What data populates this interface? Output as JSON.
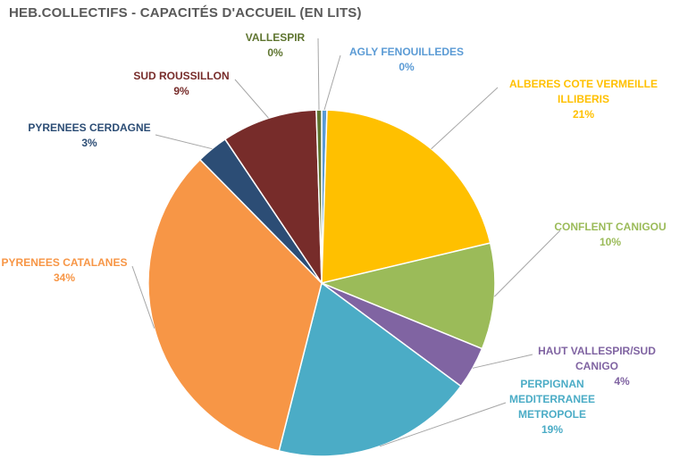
{
  "chart_data": {
    "type": "pie",
    "title": "HEB.COLLECTIFS  - CAPACITÉS D'ACCUEIL (EN LITS)",
    "slices": [
      {
        "name": "AGLY FENOUILLEDES",
        "value": 0.5,
        "label_lines": [
          "AGLY FENOUILLEDES"
        ],
        "pct": "0%",
        "color": "#5B9BD5"
      },
      {
        "name": "ALBERES COTE VERMEILLE ILLIBERIS",
        "value": 21,
        "label_lines": [
          "ALBERES COTE VERMEILLE",
          "ILLIBERIS"
        ],
        "pct": "21%",
        "color": "#FFC000"
      },
      {
        "name": "CONFLENT CANIGOU",
        "value": 10,
        "label_lines": [
          "CONFLENT CANIGOU"
        ],
        "pct": "10%",
        "color": "#9BBB59"
      },
      {
        "name": "HAUT VALLESPIR/SUD CANIGO",
        "value": 4,
        "label_lines": [
          "HAUT VALLESPIR/SUD",
          "CANIGO"
        ],
        "pct": "4%",
        "color": "#8064A2"
      },
      {
        "name": "PERPIGNAN MEDITERRANEE METROPOLE",
        "value": 19,
        "label_lines": [
          "PERPIGNAN",
          "MEDITERRANEE",
          "METROPOLE"
        ],
        "pct": "19%",
        "color": "#4BACC6"
      },
      {
        "name": "PYRENEES CATALANES",
        "value": 34,
        "label_lines": [
          "PYRENEES CATALANES"
        ],
        "pct": "34%",
        "color": "#F79646"
      },
      {
        "name": "PYRENEES CERDAGNE",
        "value": 3,
        "label_lines": [
          "PYRENEES CERDAGNE"
        ],
        "pct": "3%",
        "color": "#2C4D75"
      },
      {
        "name": "SUD ROUSSILLON",
        "value": 9,
        "label_lines": [
          "SUD ROUSSILLON"
        ],
        "pct": "9%",
        "color": "#772C2A"
      },
      {
        "name": "VALLESPIR",
        "value": 0.5,
        "label_lines": [
          "VALLESPIR"
        ],
        "pct": "0%",
        "color": "#5F7530"
      }
    ],
    "legend": "none",
    "start": "12 o'clock, clockwise"
  }
}
